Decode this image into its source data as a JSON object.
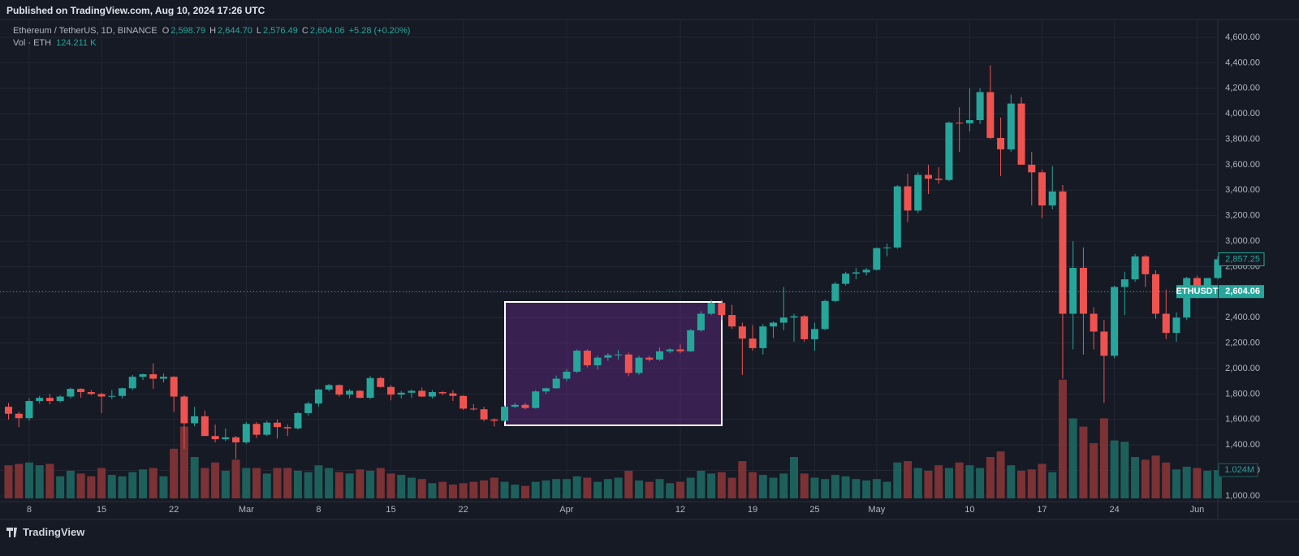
{
  "header": {
    "published": "Published on TradingView.com, Aug 10, 2024 17:26 UTC",
    "brand": "TradingView"
  },
  "legend": {
    "symbol": "Ethereum / TetherUS, 1D, BINANCE",
    "o": "O",
    "open": "2,598.79",
    "h": "H",
    "high": "2,644.70",
    "l": "L",
    "low": "2,576.49",
    "c": "C",
    "close": "2,604.06",
    "change": "+5.28 (+0.20%)",
    "volume_title": "Vol · ETH",
    "volume": "124.211 K"
  },
  "chart_data": {
    "type": "candlestick",
    "up_color": "#26a69a",
    "down_color": "#ef5350",
    "volume_up_color": "#1d5f5b",
    "volume_down_color": "#7b3235",
    "grid": true,
    "ylim": [
      955,
      4740
    ],
    "yticks": [
      {
        "value": 1000,
        "label": "1,000.00"
      },
      {
        "value": 1200,
        "label": "1,200.00"
      },
      {
        "value": 1400,
        "label": "1,400.00"
      },
      {
        "value": 1600,
        "label": "1,600.00"
      },
      {
        "value": 1800,
        "label": "1,800.00"
      },
      {
        "value": 2000,
        "label": "2,000.00"
      },
      {
        "value": 2200,
        "label": "2,200.00"
      },
      {
        "value": 2400,
        "label": "2,400.00"
      },
      {
        "value": 2600,
        "label": "2,600.00"
      },
      {
        "value": 2800,
        "label": "2,800.00"
      },
      {
        "value": 3000,
        "label": "3,000.00"
      },
      {
        "value": 3200,
        "label": "3,200.00"
      },
      {
        "value": 3400,
        "label": "3,400.00"
      },
      {
        "value": 3600,
        "label": "3,600.00"
      },
      {
        "value": 3800,
        "label": "3,800.00"
      },
      {
        "value": 4000,
        "label": "4,000.00"
      },
      {
        "value": 4200,
        "label": "4,200.00"
      },
      {
        "value": 4400,
        "label": "4,400.00"
      },
      {
        "value": 4600,
        "label": "4,600.00"
      }
    ],
    "categories": [
      null,
      null,
      "8",
      null,
      null,
      null,
      null,
      null,
      null,
      "15",
      null,
      null,
      null,
      null,
      null,
      null,
      "22",
      null,
      null,
      null,
      null,
      null,
      null,
      "Mar",
      null,
      null,
      null,
      null,
      null,
      null,
      "8",
      null,
      null,
      null,
      null,
      null,
      null,
      "15",
      null,
      null,
      null,
      null,
      null,
      null,
      "22",
      null,
      null,
      null,
      null,
      null,
      null,
      null,
      null,
      null,
      "Apr",
      null,
      null,
      null,
      null,
      null,
      null,
      null,
      null,
      null,
      null,
      "12",
      null,
      null,
      null,
      null,
      null,
      null,
      "19",
      null,
      null,
      null,
      null,
      null,
      "25",
      null,
      null,
      null,
      null,
      null,
      "May",
      null,
      null,
      null,
      null,
      null,
      null,
      null,
      null,
      "10",
      null,
      null,
      null,
      null,
      null,
      null,
      "17",
      null,
      null,
      null,
      null,
      null,
      null,
      "24",
      null,
      null,
      null,
      null,
      null,
      null,
      null,
      "Jun",
      null,
      null
    ],
    "open": [
      1700,
      1645,
      1610,
      1745,
      1770,
      1745,
      1780,
      1840,
      1815,
      1800,
      1780,
      1785,
      1845,
      1935,
      1955,
      1920,
      1935,
      1780,
      1570,
      1625,
      1470,
      1445,
      1460,
      1420,
      1565,
      1480,
      1575,
      1540,
      1530,
      1650,
      1725,
      1835,
      1870,
      1795,
      1825,
      1770,
      1925,
      1855,
      1795,
      1810,
      1825,
      1780,
      1815,
      1805,
      1785,
      1685,
      1680,
      1600,
      1590,
      1700,
      1715,
      1690,
      1820,
      1845,
      1920,
      1975,
      2140,
      2025,
      2085,
      2105,
      2110,
      1965,
      2085,
      2070,
      2135,
      2150,
      2135,
      2300,
      2430,
      2515,
      2420,
      2330,
      2235,
      2160,
      2330,
      2360,
      2400,
      2410,
      2230,
      2310,
      2530,
      2665,
      2745,
      2755,
      2775,
      2945,
      2950,
      3430,
      3240,
      3520,
      3490,
      3480,
      3930,
      3925,
      3950,
      4170,
      3810,
      3720,
      4080,
      3600,
      3540,
      3280,
      3390,
      2430,
      2790,
      2430,
      2290,
      2100,
      2640,
      2700,
      2880,
      2740,
      2430,
      2280,
      2400,
      2710,
      2630,
      2710
    ],
    "high": [
      1730,
      1660,
      1765,
      1785,
      1800,
      1790,
      1850,
      1845,
      1830,
      1810,
      1830,
      1850,
      1950,
      1960,
      2040,
      1960,
      1940,
      1790,
      1700,
      1670,
      1560,
      1530,
      1470,
      1580,
      1580,
      1590,
      1600,
      1560,
      1660,
      1740,
      1840,
      1880,
      1875,
      1840,
      1830,
      1940,
      1935,
      1870,
      1825,
      1835,
      1850,
      1830,
      1820,
      1830,
      1790,
      1720,
      1700,
      1610,
      1710,
      1730,
      1730,
      1830,
      1850,
      1945,
      1995,
      2150,
      2150,
      2100,
      2120,
      2145,
      2125,
      2100,
      2100,
      2165,
      2160,
      2190,
      2310,
      2450,
      2540,
      2540,
      2500,
      2360,
      2340,
      2350,
      2370,
      2640,
      2430,
      2420,
      2360,
      2540,
      2680,
      2760,
      2790,
      2790,
      2950,
      2980,
      3440,
      3530,
      3540,
      3600,
      3580,
      3940,
      4050,
      4200,
      4200,
      4380,
      3970,
      4150,
      4130,
      3700,
      3560,
      3590,
      3440,
      3000,
      2950,
      2480,
      2380,
      2650,
      2760,
      2900,
      2890,
      2770,
      2620,
      2440,
      2720,
      2730,
      2710,
      2880
    ],
    "low": [
      1600,
      1540,
      1590,
      1725,
      1720,
      1735,
      1765,
      1770,
      1790,
      1650,
      1760,
      1765,
      1830,
      1910,
      1840,
      1890,
      1660,
      1370,
      1545,
      1470,
      1420,
      1430,
      1290,
      1410,
      1455,
      1470,
      1450,
      1470,
      1520,
      1630,
      1700,
      1820,
      1780,
      1765,
      1765,
      1760,
      1850,
      1750,
      1765,
      1770,
      1775,
      1765,
      1790,
      1745,
      1675,
      1670,
      1585,
      1545,
      1580,
      1690,
      1680,
      1685,
      1800,
      1840,
      1900,
      1965,
      2010,
      1990,
      2060,
      2070,
      1940,
      1950,
      2055,
      2060,
      2120,
      2120,
      2130,
      2290,
      2420,
      2380,
      2310,
      1950,
      2140,
      2110,
      2240,
      2300,
      2210,
      2210,
      2140,
      2300,
      2520,
      2650,
      2700,
      2730,
      2770,
      2880,
      2940,
      3150,
      3220,
      3370,
      3450,
      3470,
      3700,
      3860,
      3920,
      3800,
      3510,
      3700,
      3600,
      3280,
      3180,
      3250,
      1920,
      2150,
      2110,
      2150,
      1730,
      2080,
      2420,
      2680,
      2640,
      2390,
      2230,
      2210,
      2380,
      2550,
      2600,
      2700
    ],
    "close": [
      1645,
      1610,
      1745,
      1770,
      1745,
      1780,
      1840,
      1815,
      1800,
      1780,
      1785,
      1845,
      1935,
      1955,
      1920,
      1935,
      1780,
      1570,
      1625,
      1470,
      1445,
      1460,
      1420,
      1565,
      1480,
      1575,
      1540,
      1530,
      1650,
      1725,
      1835,
      1870,
      1795,
      1825,
      1770,
      1925,
      1855,
      1795,
      1810,
      1825,
      1780,
      1815,
      1805,
      1785,
      1685,
      1680,
      1600,
      1590,
      1700,
      1715,
      1690,
      1820,
      1845,
      1920,
      1975,
      2140,
      2025,
      2085,
      2105,
      2110,
      1965,
      2085,
      2070,
      2135,
      2150,
      2135,
      2300,
      2430,
      2515,
      2420,
      2330,
      2235,
      2160,
      2330,
      2360,
      2400,
      2410,
      2230,
      2310,
      2530,
      2665,
      2745,
      2755,
      2775,
      2945,
      2950,
      3430,
      3240,
      3520,
      3490,
      3480,
      3930,
      3925,
      3950,
      4170,
      3810,
      3720,
      4080,
      3600,
      3540,
      3280,
      3390,
      2430,
      2790,
      2430,
      2290,
      2100,
      2640,
      2700,
      2880,
      2740,
      2430,
      2280,
      2400,
      2710,
      2630,
      2710,
      2857.25
    ],
    "volume": [
      1.2,
      1.25,
      1.3,
      1.2,
      1.25,
      0.8,
      1.0,
      0.9,
      0.8,
      1.1,
      0.85,
      0.8,
      0.95,
      1.05,
      1.1,
      0.8,
      1.8,
      2.6,
      1.5,
      1.1,
      1.3,
      1.0,
      1.4,
      1.1,
      1.1,
      0.9,
      1.1,
      1.1,
      1.0,
      0.95,
      1.2,
      1.1,
      0.95,
      0.9,
      1.05,
      1.0,
      1.1,
      0.9,
      0.85,
      0.75,
      0.7,
      0.55,
      0.6,
      0.5,
      0.55,
      0.6,
      0.65,
      0.75,
      0.6,
      0.5,
      0.45,
      0.6,
      0.65,
      0.7,
      0.7,
      0.8,
      0.75,
      0.6,
      0.7,
      0.75,
      1.0,
      0.65,
      0.6,
      0.7,
      0.55,
      0.6,
      0.75,
      1.0,
      0.9,
      0.95,
      0.75,
      1.35,
      0.95,
      0.85,
      0.75,
      0.9,
      1.5,
      0.9,
      0.75,
      0.7,
      0.85,
      0.8,
      0.7,
      0.65,
      0.7,
      0.6,
      1.3,
      1.35,
      1.1,
      1.0,
      1.2,
      1.1,
      1.3,
      1.2,
      1.1,
      1.5,
      1.7,
      1.2,
      1.0,
      1.05,
      1.25,
      0.95,
      4.3,
      2.9,
      2.6,
      2.0,
      2.9,
      2.1,
      2.05,
      1.5,
      1.4,
      1.55,
      1.3,
      1.05,
      1.15,
      1.1,
      1.0,
      1.024
    ],
    "last_price": {
      "value": 2857.25,
      "label": "2,857.25"
    },
    "current_price": {
      "value": 2604.06,
      "label": "2,604.06",
      "symbol": "ETHUSDT"
    },
    "last_volume": {
      "value": 1.024,
      "label": "1.024M"
    }
  }
}
